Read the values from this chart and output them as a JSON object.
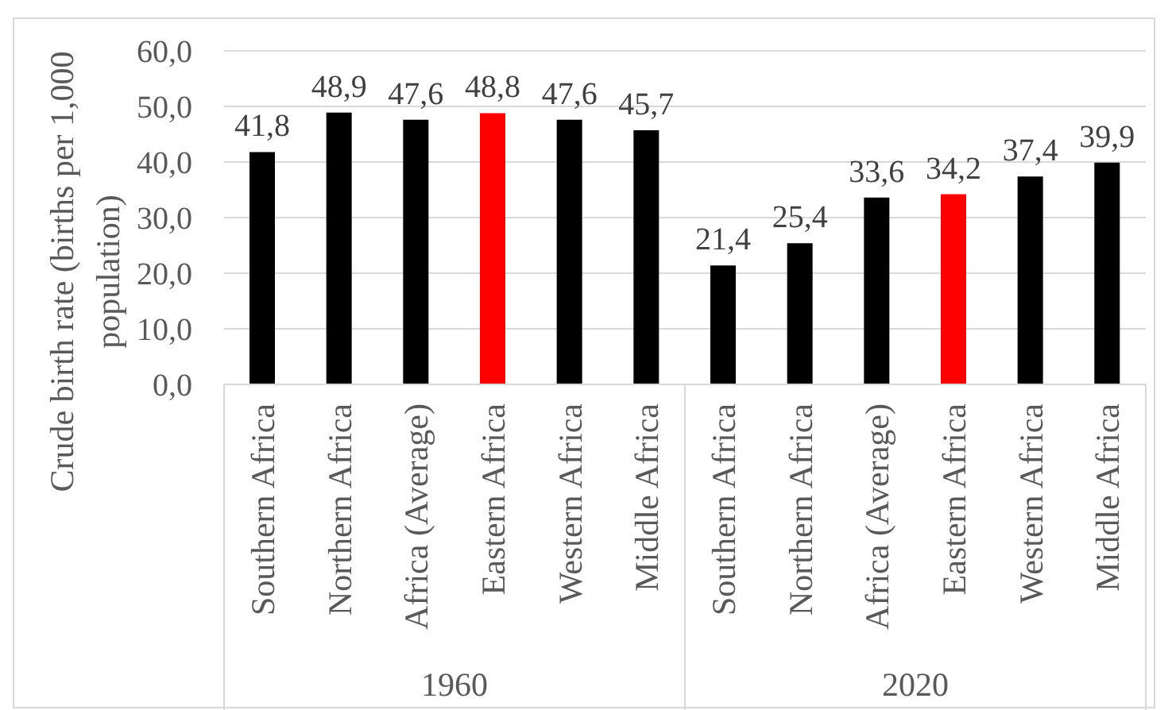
{
  "chart_data": {
    "type": "bar",
    "ylabel": "Crude birth rate (births per 1,000 population)",
    "categories": [
      "Southern Africa",
      "Northern Africa",
      "Africa (Average)",
      "Eastern Africa",
      "Western Africa",
      "Middle Africa",
      "Southern Africa",
      "Northern Africa",
      "Africa (Average)",
      "Eastern Africa",
      "Western Africa",
      "Middle Africa"
    ],
    "values": [
      41.8,
      48.9,
      47.6,
      48.8,
      47.6,
      45.7,
      21.4,
      25.4,
      33.6,
      34.2,
      37.4,
      39.9
    ],
    "colors": [
      "#000000",
      "#000000",
      "#000000",
      "#ff0000",
      "#000000",
      "#000000",
      "#000000",
      "#000000",
      "#000000",
      "#ff0000",
      "#000000",
      "#000000"
    ],
    "value_labels": [
      "41,8",
      "48,9",
      "47,6",
      "48,8",
      "47,6",
      "45,7",
      "21,4",
      "25,4",
      "33,6",
      "34,2",
      "37,4",
      "39,9"
    ],
    "ylim": [
      0,
      60
    ],
    "yticks": [
      {
        "value": 0,
        "label": "0,0"
      },
      {
        "value": 10,
        "label": "10,0"
      },
      {
        "value": 20,
        "label": "20,0"
      },
      {
        "value": 30,
        "label": "30,0"
      },
      {
        "value": 40,
        "label": "40,0"
      },
      {
        "value": 50,
        "label": "50,0"
      },
      {
        "value": 60,
        "label": "60,0"
      }
    ],
    "grid": "y",
    "annotations": [
      "1960",
      "2020"
    ]
  }
}
